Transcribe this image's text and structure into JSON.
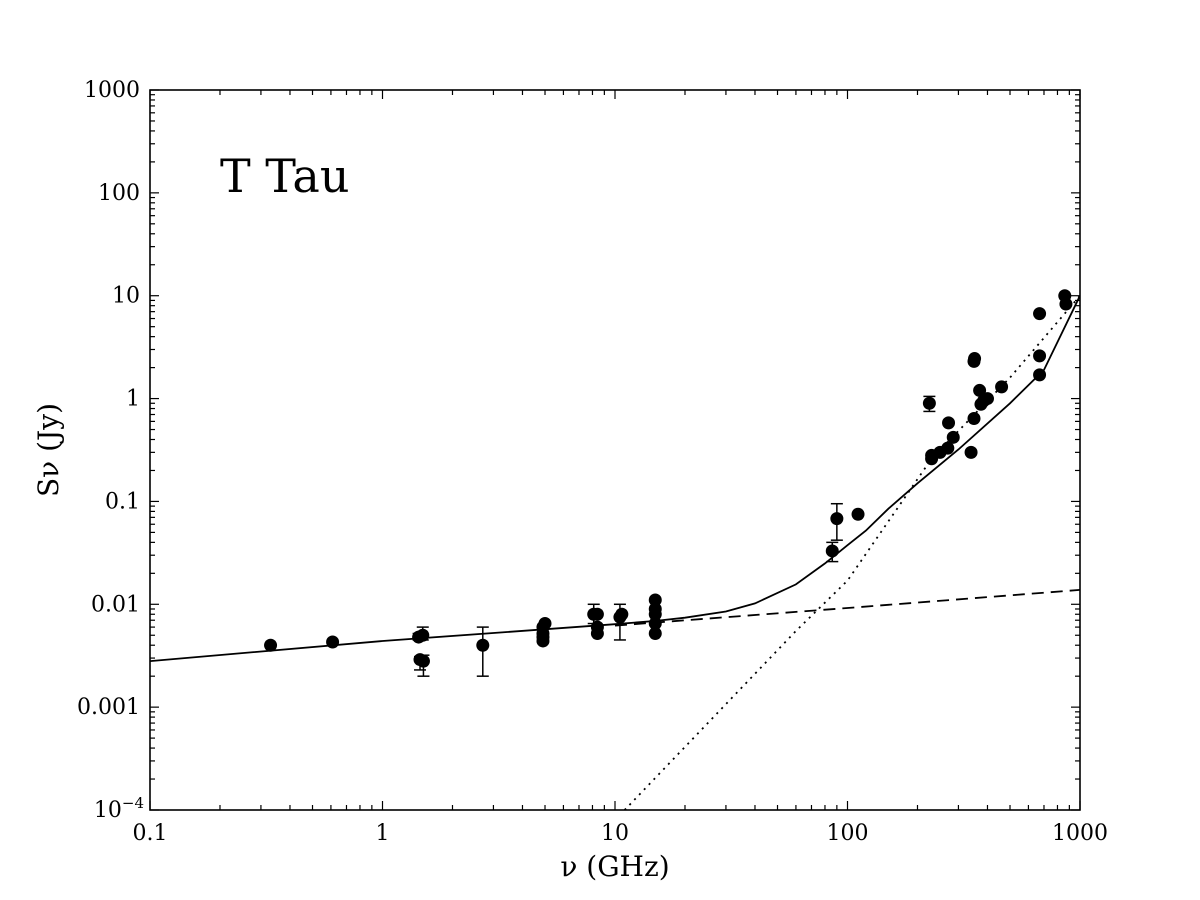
{
  "chart_data": {
    "type": "scatter",
    "title": "",
    "annotation": "T Tau",
    "xlabel": "ν (GHz)",
    "ylabel": "Sν (Jy)",
    "xscale": "log",
    "yscale": "log",
    "xlim": [
      0.1,
      1000
    ],
    "ylim": [
      0.0001,
      1000
    ],
    "grid": false,
    "x_ticks": [
      {
        "value": 0.1,
        "label": "0.1"
      },
      {
        "value": 1,
        "label": "1"
      },
      {
        "value": 10,
        "label": "10"
      },
      {
        "value": 100,
        "label": "100"
      },
      {
        "value": 1000,
        "label": "1000"
      }
    ],
    "y_ticks": [
      {
        "value": 0.0001,
        "label": "10",
        "sup": "−4"
      },
      {
        "value": 0.001,
        "label": "0.001",
        "sup": ""
      },
      {
        "value": 0.01,
        "label": "0.01",
        "sup": ""
      },
      {
        "value": 0.1,
        "label": "0.1",
        "sup": ""
      },
      {
        "value": 1,
        "label": "1",
        "sup": ""
      },
      {
        "value": 10,
        "label": "10",
        "sup": ""
      },
      {
        "value": 100,
        "label": "100",
        "sup": ""
      },
      {
        "value": 1000,
        "label": "1000",
        "sup": ""
      }
    ],
    "points": [
      {
        "x": 0.33,
        "y": 0.004
      },
      {
        "x": 0.61,
        "y": 0.0043
      },
      {
        "x": 1.43,
        "y": 0.0048,
        "err": [
          0.0045,
          0.0052
        ]
      },
      {
        "x": 1.45,
        "y": 0.0029,
        "err": [
          0.0023,
          0.0031
        ]
      },
      {
        "x": 1.49,
        "y": 0.005,
        "err": [
          0.0045,
          0.006
        ]
      },
      {
        "x": 1.5,
        "y": 0.0028,
        "err": [
          0.002,
          0.0032
        ]
      },
      {
        "x": 2.7,
        "y": 0.004,
        "err": [
          0.002,
          0.006
        ]
      },
      {
        "x": 4.9,
        "y": 0.0044
      },
      {
        "x": 4.9,
        "y": 0.0048
      },
      {
        "x": 4.9,
        "y": 0.0052
      },
      {
        "x": 4.9,
        "y": 0.006
      },
      {
        "x": 5.0,
        "y": 0.0065
      },
      {
        "x": 8.1,
        "y": 0.008,
        "err": [
          0.0065,
          0.01
        ]
      },
      {
        "x": 8.4,
        "y": 0.008
      },
      {
        "x": 8.4,
        "y": 0.0052
      },
      {
        "x": 8.4,
        "y": 0.006
      },
      {
        "x": 10.5,
        "y": 0.0075,
        "err": [
          0.0045,
          0.01
        ]
      },
      {
        "x": 10.7,
        "y": 0.008
      },
      {
        "x": 14.9,
        "y": 0.011
      },
      {
        "x": 14.9,
        "y": 0.009
      },
      {
        "x": 14.9,
        "y": 0.008
      },
      {
        "x": 14.9,
        "y": 0.0065
      },
      {
        "x": 14.9,
        "y": 0.0052
      },
      {
        "x": 86,
        "y": 0.033,
        "err": [
          0.026,
          0.04
        ]
      },
      {
        "x": 90,
        "y": 0.068,
        "err": [
          0.042,
          0.095
        ]
      },
      {
        "x": 111,
        "y": 0.075
      },
      {
        "x": 225,
        "y": 0.9,
        "err": [
          0.75,
          1.05
        ]
      },
      {
        "x": 230,
        "y": 0.26
      },
      {
        "x": 230,
        "y": 0.28
      },
      {
        "x": 250,
        "y": 0.3
      },
      {
        "x": 270,
        "y": 0.33
      },
      {
        "x": 272,
        "y": 0.58
      },
      {
        "x": 285,
        "y": 0.42
      },
      {
        "x": 340,
        "y": 0.3
      },
      {
        "x": 350,
        "y": 0.64
      },
      {
        "x": 350,
        "y": 2.3
      },
      {
        "x": 352,
        "y": 2.45
      },
      {
        "x": 370,
        "y": 1.2
      },
      {
        "x": 375,
        "y": 0.88
      },
      {
        "x": 385,
        "y": 0.95
      },
      {
        "x": 400,
        "y": 1.0
      },
      {
        "x": 460,
        "y": 1.3
      },
      {
        "x": 670,
        "y": 6.7
      },
      {
        "x": 670,
        "y": 2.6
      },
      {
        "x": 670,
        "y": 1.7
      },
      {
        "x": 860,
        "y": 10.0
      },
      {
        "x": 870,
        "y": 8.3
      }
    ],
    "lines": [
      {
        "style": "solid",
        "x": [
          0.1,
          1,
          10,
          15,
          20,
          30,
          40,
          60,
          80,
          100,
          120,
          150,
          200,
          300,
          500,
          700,
          1000
        ],
        "y": [
          0.0028,
          0.0044,
          0.0064,
          0.0069,
          0.0074,
          0.0085,
          0.0102,
          0.0156,
          0.025,
          0.0375,
          0.052,
          0.085,
          0.15,
          0.32,
          0.9,
          1.9,
          10
        ]
      },
      {
        "style": "dashed",
        "x": [
          10,
          100,
          1000
        ],
        "y": [
          0.0062,
          0.0092,
          0.0138
        ]
      },
      {
        "style": "dotted",
        "x": [
          11,
          60,
          100,
          230,
          500,
          1000
        ],
        "y": [
          0.0001,
          0.0055,
          0.017,
          0.26,
          1.6,
          10
        ]
      }
    ]
  }
}
